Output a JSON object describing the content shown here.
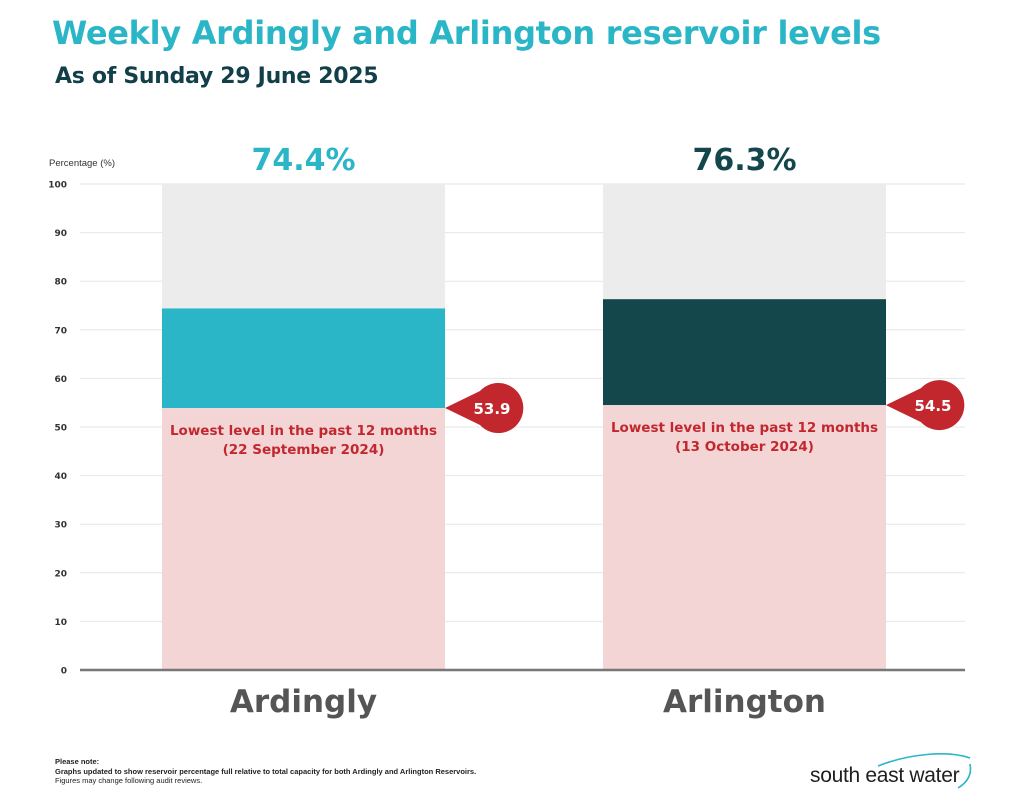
{
  "header": {
    "title": "Weekly Ardingly and Arlington reservoir levels",
    "subtitle": "As of Sunday 29 June 2025"
  },
  "chart_data": {
    "type": "bar",
    "ylabel": "Percentage (%)",
    "ylim": [
      0,
      100
    ],
    "yticks": [
      0,
      10,
      20,
      30,
      40,
      50,
      60,
      70,
      80,
      90,
      100
    ],
    "grid": true,
    "categories": [
      "Ardingly",
      "Arlington"
    ],
    "series": [
      {
        "values": [
          74.4,
          76.3
        ],
        "value_labels": [
          "74.4%",
          "76.3%"
        ]
      },
      {
        "values": [
          53.9,
          54.5
        ],
        "value_labels": [
          "53.9",
          "54.5"
        ],
        "annotations": [
          "Lowest level in the past 12 months\n(22 September 2024)",
          "Lowest level in the past 12 months\n(13 October 2024)"
        ]
      }
    ],
    "colors": {
      "ardingly": "#2bb6c8",
      "arlington": "#14474c",
      "remaining": "#ececec",
      "lowest_band": "#f3d5d6",
      "lowest_marker": "#c2272d",
      "axis": "#777777",
      "grid": "#e6e6e6"
    }
  },
  "footer": {
    "note_title": "Please note:",
    "note_line1": "Graphs updated to show reservoir percentage full relative to total capacity for both Ardingly and Arlington Reservoirs.",
    "note_line2": "Figures may change following audit reviews.",
    "logo_text": "south east water"
  }
}
